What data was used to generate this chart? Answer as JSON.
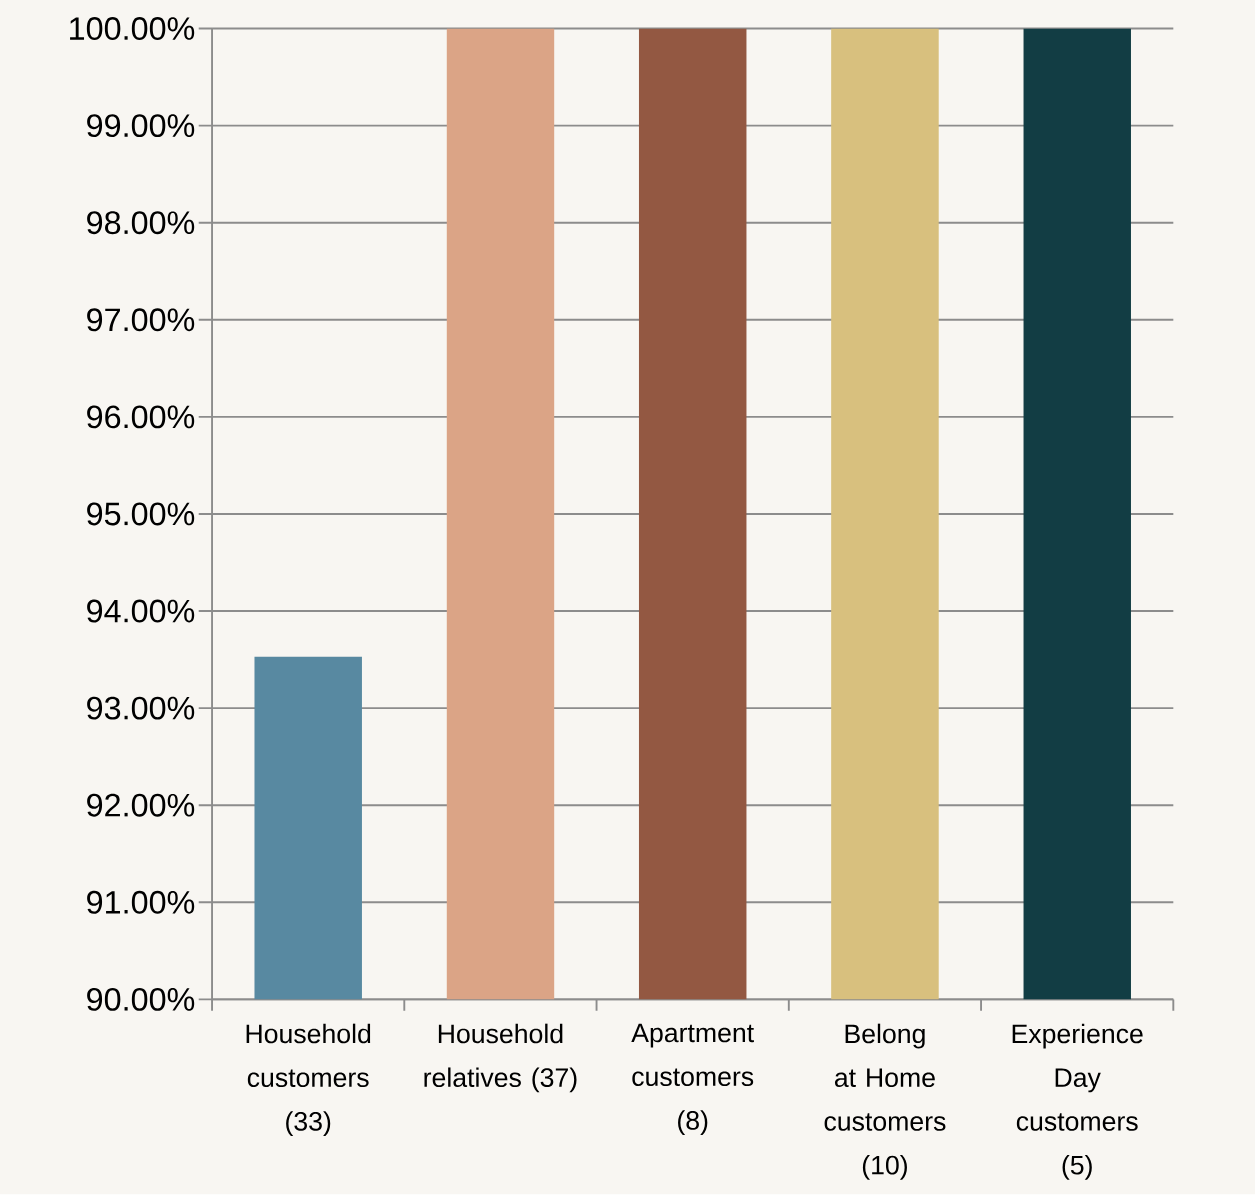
{
  "chart_data": {
    "type": "bar",
    "categories": [
      "Household customers (33)",
      "Household relatives (37)",
      "Apartment customers (8)",
      "Belong at Home customers (10)",
      "Experience Day customers (5)"
    ],
    "values": [
      93.53,
      100,
      100,
      100,
      100
    ],
    "colors": [
      "#5889a1",
      "#dba486",
      "#935842",
      "#d8c07e",
      "#123d44"
    ],
    "ylim": [
      90,
      100
    ],
    "yticks": [
      {
        "value": 90,
        "label": "90.00%"
      },
      {
        "value": 91,
        "label": "91.00%"
      },
      {
        "value": 92,
        "label": "92.00%"
      },
      {
        "value": 93,
        "label": "93.00%"
      },
      {
        "value": 94,
        "label": "94.00%"
      },
      {
        "value": 95,
        "label": "95.00%"
      },
      {
        "value": 96,
        "label": "96.00%"
      },
      {
        "value": 97,
        "label": "97.00%"
      },
      {
        "value": 98,
        "label": "98.00%"
      },
      {
        "value": 99,
        "label": "99.00%"
      },
      {
        "value": 100,
        "label": "100.00%"
      }
    ],
    "grid": "y"
  }
}
